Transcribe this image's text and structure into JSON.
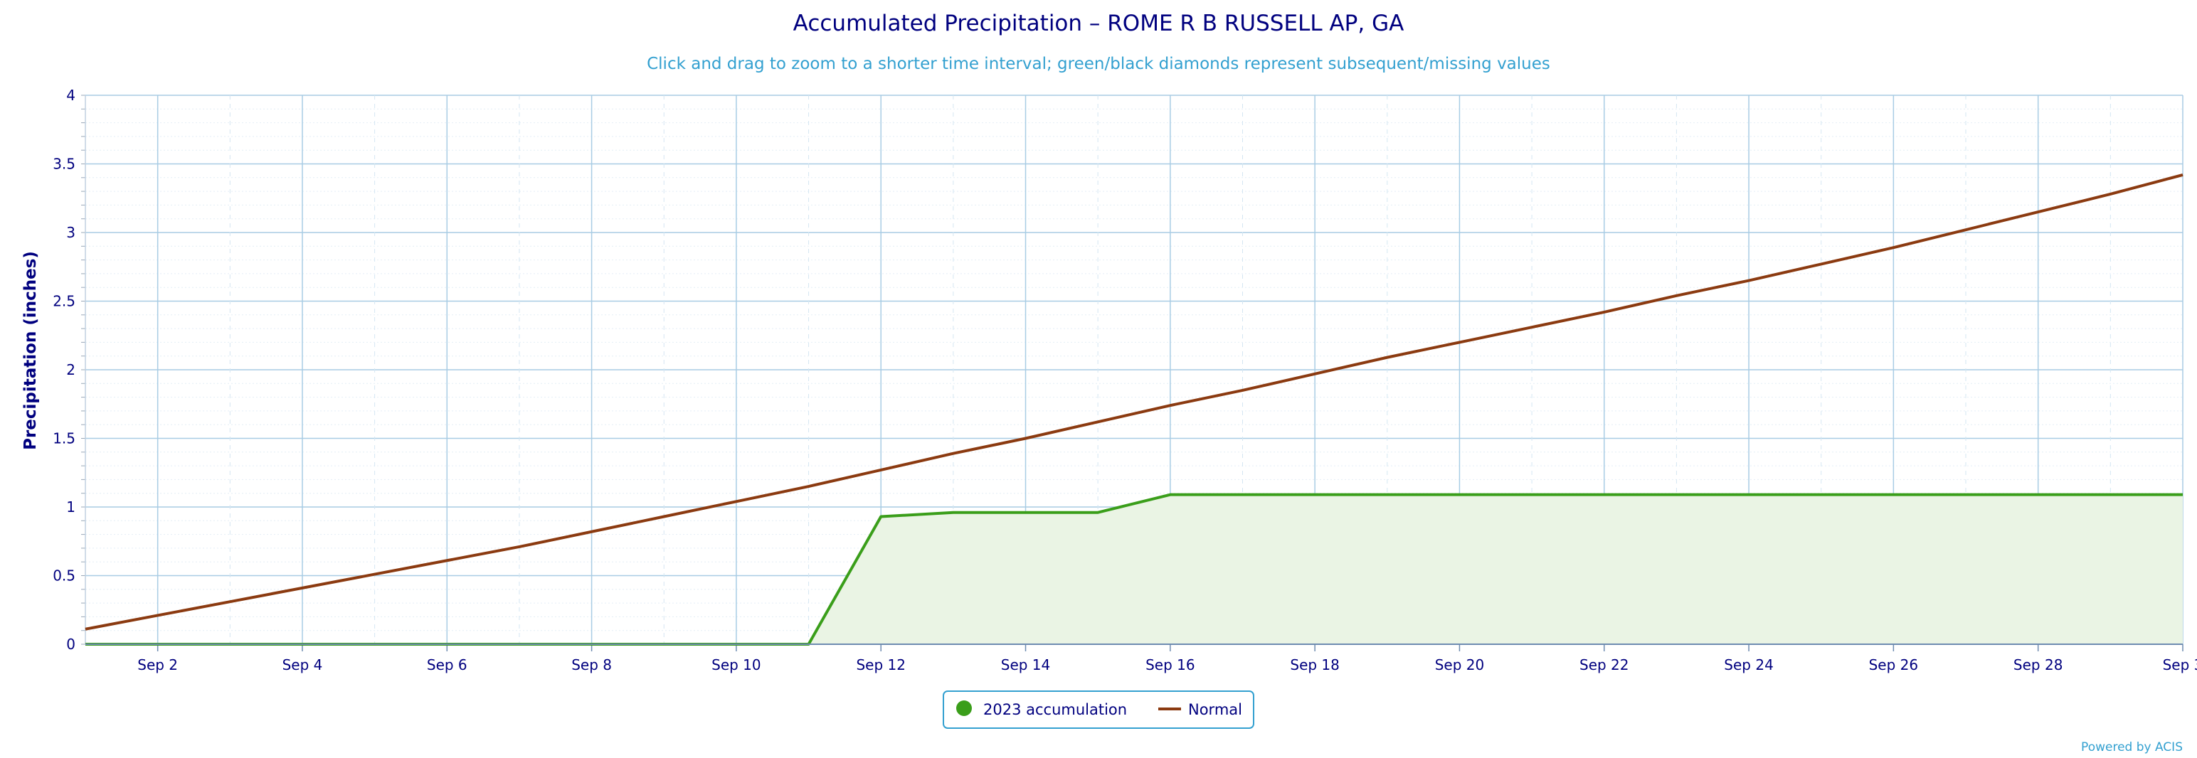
{
  "chart_data": {
    "type": "line",
    "title": "Accumulated Precipitation – ROME R B RUSSELL AP, GA",
    "subtitle": "Click and drag to zoom to a shorter time interval; green/black diamonds represent subsequent/missing values",
    "xlabel": "",
    "ylabel": "Precipitation (inches)",
    "ylim": [
      0,
      4
    ],
    "yticks": [
      "0",
      "0.5",
      "1",
      "1.5",
      "2",
      "2.5",
      "3",
      "3.5",
      "4"
    ],
    "xticks": [
      "Sep 2",
      "Sep 4",
      "Sep 6",
      "Sep 8",
      "Sep 10",
      "Sep 12",
      "Sep 14",
      "Sep 16",
      "Sep 18",
      "Sep 20",
      "Sep 22",
      "Sep 24",
      "Sep 26",
      "Sep 28",
      "Sep 3"
    ],
    "x": [
      1,
      2,
      3,
      4,
      5,
      6,
      7,
      8,
      9,
      10,
      11,
      12,
      13,
      14,
      15,
      16,
      17,
      18,
      19,
      20,
      21,
      22,
      23,
      24,
      25,
      26,
      27,
      28,
      29,
      30
    ],
    "series": [
      {
        "name": "2023 accumulation",
        "color": "#3a9e1a",
        "fill": "#eaf4e4",
        "values": [
          0,
          0,
          0,
          0,
          0,
          0,
          0,
          0,
          0,
          0,
          0,
          0.93,
          0.96,
          0.96,
          0.96,
          1.09,
          1.09,
          1.09,
          1.09,
          1.09,
          1.09,
          1.09,
          1.09,
          1.09,
          1.09,
          1.09,
          1.09,
          1.09,
          1.09,
          1.09
        ]
      },
      {
        "name": "Normal",
        "color": "#8b3a10",
        "values": [
          0.11,
          0.21,
          0.31,
          0.41,
          0.51,
          0.61,
          0.71,
          0.82,
          0.93,
          1.04,
          1.15,
          1.27,
          1.39,
          1.5,
          1.62,
          1.74,
          1.85,
          1.97,
          2.09,
          2.2,
          2.31,
          2.42,
          2.54,
          2.65,
          2.77,
          2.89,
          3.02,
          3.15,
          3.28,
          3.42
        ]
      }
    ],
    "grid": true,
    "legend_position": "bottom-center",
    "credit": "Powered by ACIS"
  }
}
